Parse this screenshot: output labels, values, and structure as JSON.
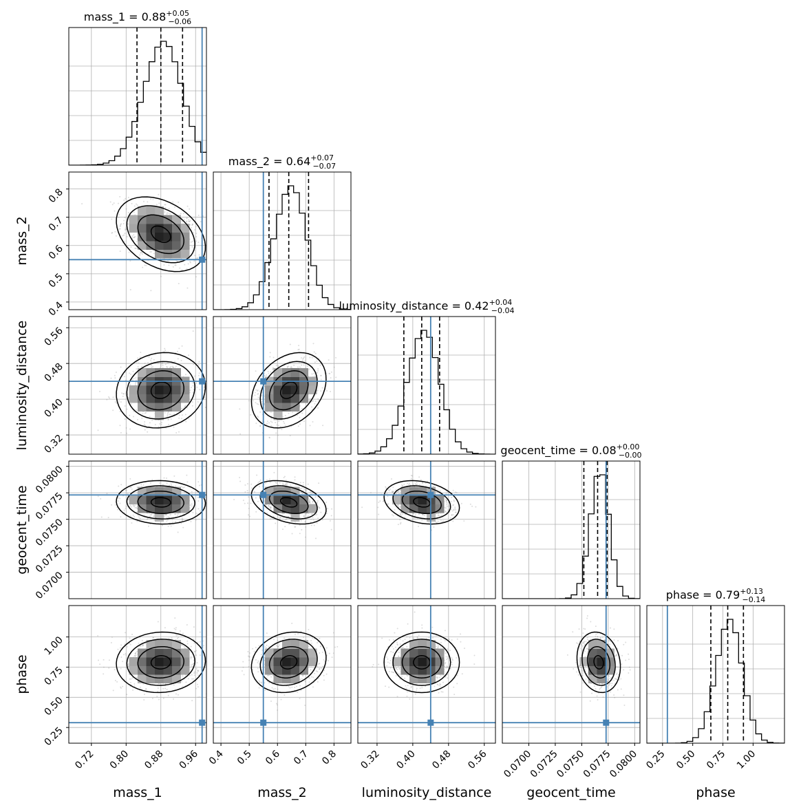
{
  "chart_data": {
    "type": "corner",
    "parameters": [
      "mass_1",
      "mass_2",
      "luminosity_distance",
      "geocent_time",
      "phase"
    ],
    "axis_labels": [
      "mass_1",
      "mass_2",
      "luminosity_distance",
      "geocent_time",
      "phase"
    ],
    "ranges": [
      [
        0.668,
        0.985
      ],
      [
        0.373,
        0.86
      ],
      [
        0.277,
        0.585
      ],
      [
        0.0675,
        0.0805
      ],
      [
        0.12,
        1.26
      ]
    ],
    "ticks": [
      [
        "0.72",
        "0.80",
        "0.88",
        "0.96"
      ],
      [
        "0.4",
        "0.5",
        "0.6",
        "0.7",
        "0.8"
      ],
      [
        "0.32",
        "0.40",
        "0.48",
        "0.56"
      ],
      [
        "0.0700",
        "0.0725",
        "0.0750",
        "0.0775",
        "0.0800"
      ],
      [
        "0.25",
        "0.50",
        "0.75",
        "1.00"
      ]
    ],
    "titles": [
      {
        "name": "mass_1",
        "median": "0.88",
        "plus": "+0.05",
        "minus": "−0.06"
      },
      {
        "name": "mass_2",
        "median": "0.64",
        "plus": "+0.07",
        "minus": "−0.07"
      },
      {
        "name": "luminosity_distance",
        "median": "0.42",
        "plus": "+0.04",
        "minus": "−0.04"
      },
      {
        "name": "geocent_time",
        "median": "0.08",
        "plus": "+0.00",
        "minus": "−0.00"
      },
      {
        "name": "phase",
        "median": "0.79",
        "plus": "+0.13",
        "minus": "−0.14"
      }
    ],
    "quantiles": [
      [
        0.825,
        0.88,
        0.93
      ],
      [
        0.57,
        0.64,
        0.71
      ],
      [
        0.38,
        0.42,
        0.46
      ],
      [
        0.0752,
        0.0765,
        0.0774
      ],
      [
        0.65,
        0.79,
        0.92
      ]
    ],
    "means": [
      0.88,
      0.64,
      0.42,
      0.0766,
      0.79
    ],
    "sigmas": [
      0.045,
      0.058,
      0.037,
      0.0009,
      0.11
    ],
    "correlations": [
      [
        1,
        -0.35,
        0.1,
        -0.05,
        0.05
      ],
      [
        -0.35,
        1,
        0.3,
        -0.35,
        0.15
      ],
      [
        0.1,
        0.3,
        1,
        -0.25,
        0
      ],
      [
        -0.05,
        -0.35,
        -0.25,
        1,
        -0.15
      ],
      [
        0.05,
        0.15,
        0,
        -0.15,
        1
      ]
    ],
    "truths": [
      0.975,
      0.55,
      0.44,
      0.0773,
      0.29
    ],
    "truth_color": "#4682b4",
    "grid": true,
    "colors": {
      "hist": "#000000",
      "quantile": "#000000",
      "points": "#9a9a9a",
      "contour": "#000000"
    }
  }
}
